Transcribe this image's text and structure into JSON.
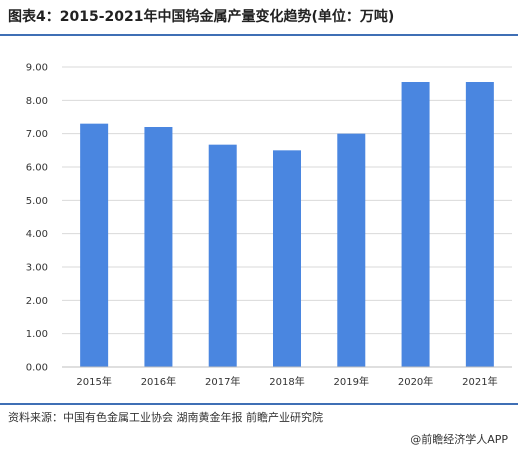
{
  "title": "图表4：2015-2021年中国钨金属产量变化趋势(单位：万吨)",
  "source": "资料来源：中国有色金属工业协会 湖南黄金年报 前瞻产业研究院",
  "brand": "@前瞻经济学人APP",
  "colors": {
    "bar": "#4a86e0",
    "rule": "#3f6fb5",
    "grid": "#d9d9d9"
  },
  "chart_data": {
    "type": "bar",
    "categories": [
      "2015年",
      "2016年",
      "2017年",
      "2018年",
      "2019年",
      "2020年",
      "2021年"
    ],
    "values": [
      7.3,
      7.2,
      6.67,
      6.5,
      7.0,
      8.55,
      8.55
    ],
    "yticks": [
      "0.00",
      "1.00",
      "2.00",
      "3.00",
      "4.00",
      "5.00",
      "6.00",
      "7.00",
      "8.00",
      "9.00"
    ],
    "ylim": [
      0,
      9
    ],
    "grid": true,
    "legend": "none"
  }
}
